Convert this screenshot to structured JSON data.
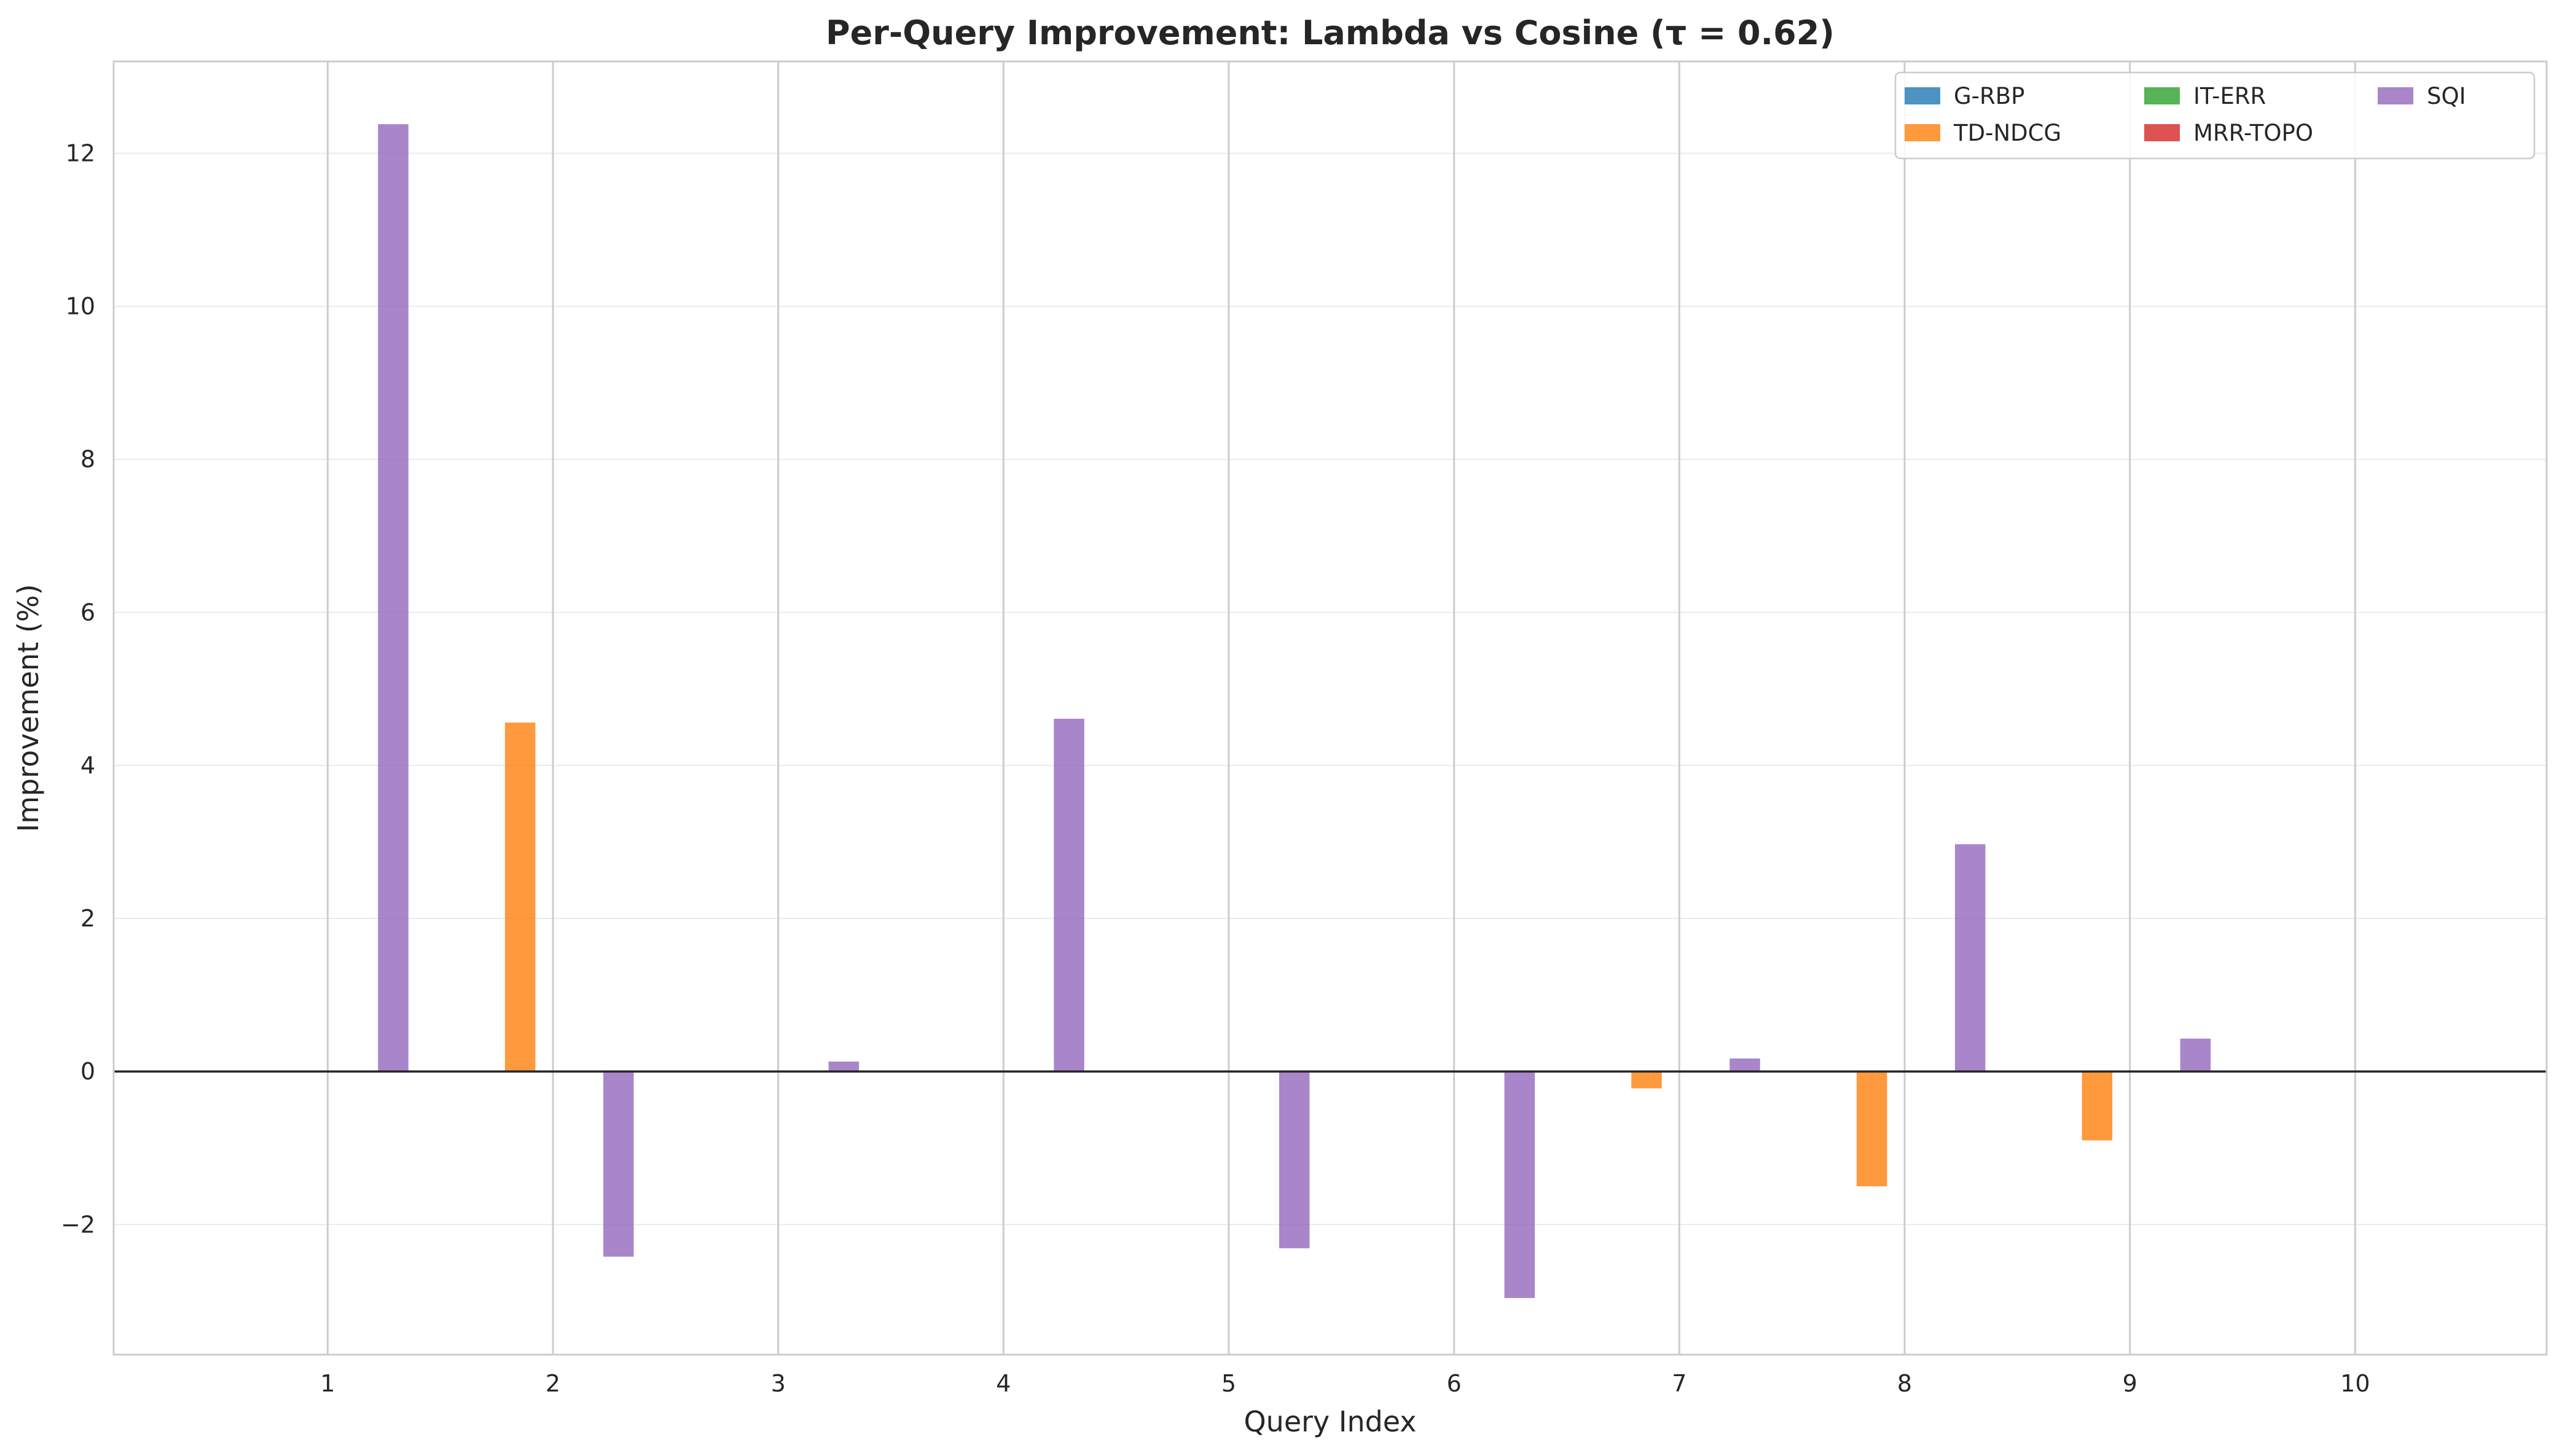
{
  "chart_data": {
    "type": "bar",
    "title": "Per-Query Improvement: Lambda vs Cosine (τ = 0.62)",
    "xlabel": "Query Index",
    "ylabel": "Improvement (%)",
    "categories": [
      "1",
      "2",
      "3",
      "4",
      "5",
      "6",
      "7",
      "8",
      "9",
      "10"
    ],
    "ylim": [
      -3.7,
      13.2
    ],
    "yticks": [
      -2,
      0,
      2,
      4,
      6,
      8,
      10,
      12
    ],
    "ytick_labels": [
      "−2",
      "0",
      "2",
      "4",
      "6",
      "8",
      "10",
      "12"
    ],
    "grid": true,
    "legend_position": "top-right",
    "legend_columns": 3,
    "series": [
      {
        "name": "G-RBP",
        "color": "#1f77b4",
        "values": [
          0,
          0,
          0,
          0,
          0,
          0,
          0,
          0,
          0,
          0
        ]
      },
      {
        "name": "TD-NDCG",
        "color": "#ff7f0e",
        "values": [
          0,
          4.56,
          0,
          0,
          0,
          0,
          -0.22,
          -1.5,
          -0.9,
          0
        ]
      },
      {
        "name": "IT-ERR",
        "color": "#2ca02c",
        "values": [
          0,
          0,
          0,
          0,
          0,
          0,
          0,
          0,
          0,
          0
        ]
      },
      {
        "name": "MRR-TOPO",
        "color": "#d62728",
        "values": [
          0,
          0,
          0,
          0,
          0,
          0,
          0,
          0,
          0,
          0
        ]
      },
      {
        "name": "SQI",
        "color": "#9467bd",
        "values": [
          12.38,
          -2.42,
          0.13,
          4.61,
          -2.31,
          -2.96,
          0.17,
          2.97,
          0.43,
          0
        ]
      }
    ]
  }
}
